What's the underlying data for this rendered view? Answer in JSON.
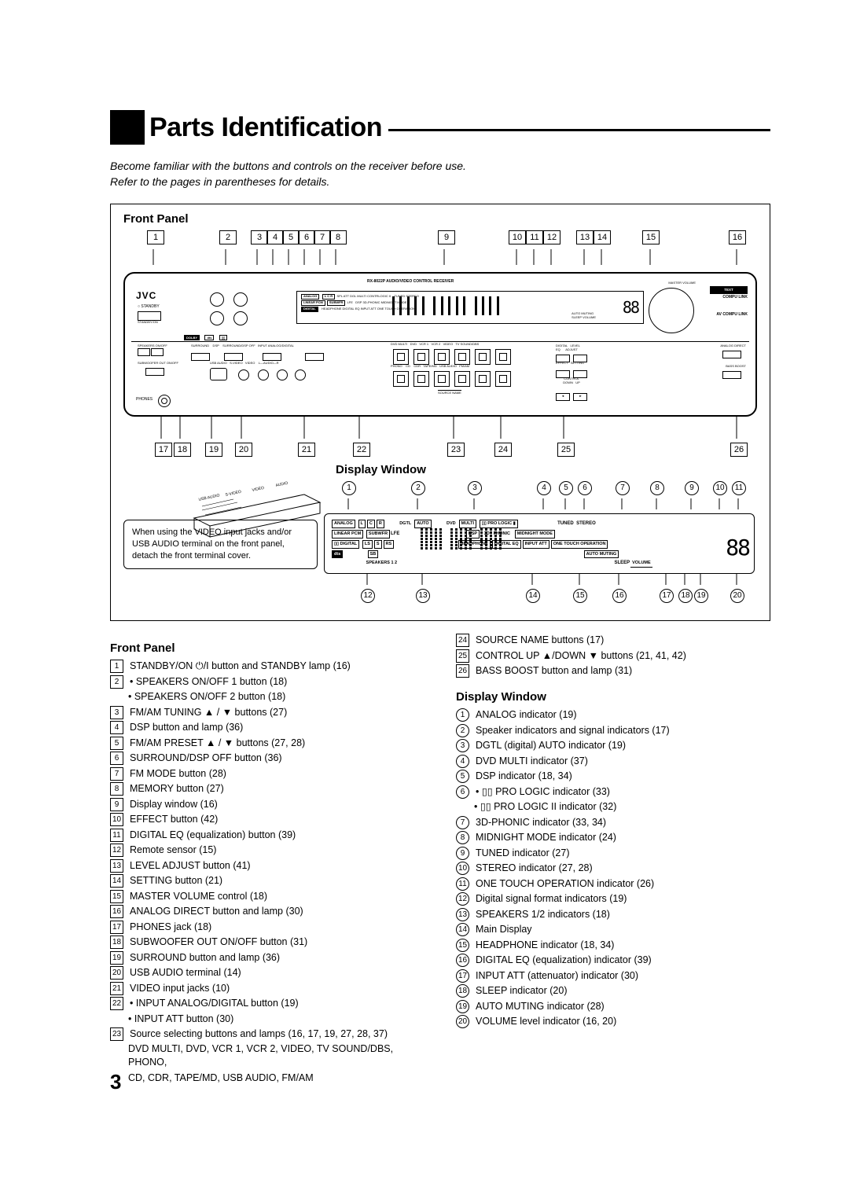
{
  "page_number": "3",
  "title": "Parts Identification",
  "intro_line1": "Become familiar with the buttons and controls on the receiver before use.",
  "intro_line2": "Refer to the pages in parentheses for details.",
  "front_panel_heading": "Front Panel",
  "display_window_heading": "Display Window",
  "top_callouts": [
    "1",
    "2",
    "3",
    "4",
    "5",
    "6",
    "7",
    "8",
    "9",
    "10",
    "11",
    "12",
    "13",
    "14",
    "15",
    "16"
  ],
  "bottom_callouts": [
    "17",
    "18",
    "19",
    "20",
    "21",
    "22",
    "23",
    "24",
    "25",
    "26"
  ],
  "display_top_callouts": [
    "1",
    "2",
    "3",
    "4",
    "5",
    "6",
    "7",
    "8",
    "9",
    "10",
    "11"
  ],
  "display_bottom_callouts": [
    "12",
    "13",
    "14",
    "15",
    "16",
    "17",
    "18",
    "19",
    "20"
  ],
  "note_text": "When using the VIDEO input jacks and/or USB AUDIO terminal on the front panel, detach the front terminal cover.",
  "device": {
    "brand": "JVC",
    "model_line": "RX-8022P   AUDIO/VIDEO CONTROL RECEIVER",
    "labels": [
      "STANDBY",
      "STANDBY/ON",
      "SPEAKERS ON/OFF",
      "FM/AM TUNING",
      "DSP",
      "FM/AM PRESET",
      "SURROUND/DSP OFF",
      "FM MODE",
      "MEMORY",
      "MASTER VOLUME",
      "COMPU LINK",
      "AV COMPU LINK",
      "DIGITAL EQ",
      "INPUT ATT",
      "ANALOG DIRECT",
      "BASS BOOST",
      "EFFECT",
      "SETTING",
      "LEVEL ADJUST",
      "PHONES",
      "SUBWOOFER OUT ON/OFF",
      "SURROUND",
      "USB AUDIO",
      "S-VIDEO",
      "VIDEO",
      "AUDIO",
      "DVD MULTI",
      "DVD",
      "VCR 1",
      "VCR 2",
      "VIDEO",
      "TV SOUND/DBS",
      "PHONO",
      "CD",
      "CDR",
      "TAPE / MD",
      "USB AUDIO",
      "FM / AM",
      "SOURCE NAME",
      "CONTROL",
      "DOWN",
      "UP",
      "INPUT ANALOG/DIGITAL",
      "DIGITAL",
      "LEVEL ADJUST"
    ],
    "display_indicators": [
      "ANALOG",
      "L",
      "C",
      "R",
      "DGTL",
      "AUTO",
      "DVD",
      "MULTI",
      "PRO LOGIC",
      "TUNED",
      "STEREO",
      "LINEAR PCM",
      "SUBWFR",
      "LFE",
      "DSP",
      "3D-PHONIC",
      "MIDNIGHT MODE",
      "DIGITAL",
      "LS",
      "S",
      "RS",
      "HEADPHONE",
      "DIGITAL EQ",
      "INPUT ATT",
      "ONE TOUCH OPERATION",
      "SB",
      "AUTO MUTING",
      "SPEAKERS 1 2",
      "SLEEP",
      "VOLUME",
      "dts"
    ]
  },
  "front_panel_items": [
    {
      "n": "1",
      "t": "STANDBY/ON ⏻/I button and STANDBY lamp (16)"
    },
    {
      "n": "2",
      "t": "• SPEAKERS ON/OFF 1 button (18)"
    },
    {
      "n": "",
      "t": "• SPEAKERS ON/OFF 2 button (18)"
    },
    {
      "n": "3",
      "t": "FM/AM TUNING ▲ / ▼ buttons (27)"
    },
    {
      "n": "4",
      "t": "DSP button and lamp (36)"
    },
    {
      "n": "5",
      "t": "FM/AM PRESET ▲ / ▼ buttons (27, 28)"
    },
    {
      "n": "6",
      "t": "SURROUND/DSP OFF button (36)"
    },
    {
      "n": "7",
      "t": "FM MODE button (28)"
    },
    {
      "n": "8",
      "t": "MEMORY button (27)"
    },
    {
      "n": "9",
      "t": "Display window (16)"
    },
    {
      "n": "10",
      "t": "EFFECT button (42)"
    },
    {
      "n": "11",
      "t": "DIGITAL EQ (equalization) button (39)"
    },
    {
      "n": "12",
      "t": "Remote sensor (15)"
    },
    {
      "n": "13",
      "t": "LEVEL ADJUST button (41)"
    },
    {
      "n": "14",
      "t": "SETTING button (21)"
    },
    {
      "n": "15",
      "t": "MASTER VOLUME control (18)"
    },
    {
      "n": "16",
      "t": "ANALOG DIRECT button and lamp (30)"
    },
    {
      "n": "17",
      "t": "PHONES jack (18)"
    },
    {
      "n": "18",
      "t": "SUBWOOFER OUT ON/OFF button (31)"
    },
    {
      "n": "19",
      "t": "SURROUND button and lamp (36)"
    },
    {
      "n": "20",
      "t": "USB AUDIO terminal (14)"
    },
    {
      "n": "21",
      "t": "VIDEO input jacks (10)"
    },
    {
      "n": "22",
      "t": "• INPUT ANALOG/DIGITAL button  (19)"
    },
    {
      "n": "",
      "t": "• INPUT ATT button (30)"
    },
    {
      "n": "23",
      "t": "Source selecting buttons and lamps (16, 17, 19, 27, 28, 37)"
    },
    {
      "n": "",
      "t": "DVD MULTI, DVD, VCR 1, VCR 2, VIDEO, TV SOUND/DBS, PHONO,"
    },
    {
      "n": "",
      "t": "CD, CDR, TAPE/MD, USB AUDIO,  FM/AM"
    }
  ],
  "front_panel_items_right": [
    {
      "n": "24",
      "t": "SOURCE NAME buttons (17)"
    },
    {
      "n": "25",
      "t": "CONTROL UP ▲/DOWN ▼ buttons (21, 41, 42)"
    },
    {
      "n": "26",
      "t": "BASS BOOST button and lamp (31)"
    }
  ],
  "display_items": [
    {
      "n": "1",
      "t": "ANALOG indicator (19)"
    },
    {
      "n": "2",
      "t": "Speaker indicators and signal indicators (17)"
    },
    {
      "n": "3",
      "t": "DGTL (digital) AUTO indicator (19)"
    },
    {
      "n": "4",
      "t": "DVD MULTI indicator (37)"
    },
    {
      "n": "5",
      "t": "DSP indicator (18, 34)"
    },
    {
      "n": "6",
      "t": "• ▯▯ PRO LOGIC indicator (33)"
    },
    {
      "n": "",
      "t": "• ▯▯ PRO LOGIC II indicator (32)"
    },
    {
      "n": "7",
      "t": "3D-PHONIC indicator (33, 34)"
    },
    {
      "n": "8",
      "t": "MIDNIGHT MODE indicator (24)"
    },
    {
      "n": "9",
      "t": "TUNED indicator (27)"
    },
    {
      "n": "10",
      "t": "STEREO indicator (27, 28)"
    },
    {
      "n": "11",
      "t": "ONE TOUCH OPERATION indicator (26)"
    },
    {
      "n": "12",
      "t": "Digital signal format indicators (19)"
    },
    {
      "n": "13",
      "t": "SPEAKERS 1/2 indicators (18)"
    },
    {
      "n": "14",
      "t": "Main Display"
    },
    {
      "n": "15",
      "t": "HEADPHONE indicator (18, 34)"
    },
    {
      "n": "16",
      "t": "DIGITAL EQ (equalization) indicator (39)"
    },
    {
      "n": "17",
      "t": "INPUT ATT (attenuator)  indicator (30)"
    },
    {
      "n": "18",
      "t": "SLEEP indicator (20)"
    },
    {
      "n": "19",
      "t": "AUTO MUTING indicator (28)"
    },
    {
      "n": "20",
      "t": "VOLUME level indicator (16, 20)"
    }
  ]
}
